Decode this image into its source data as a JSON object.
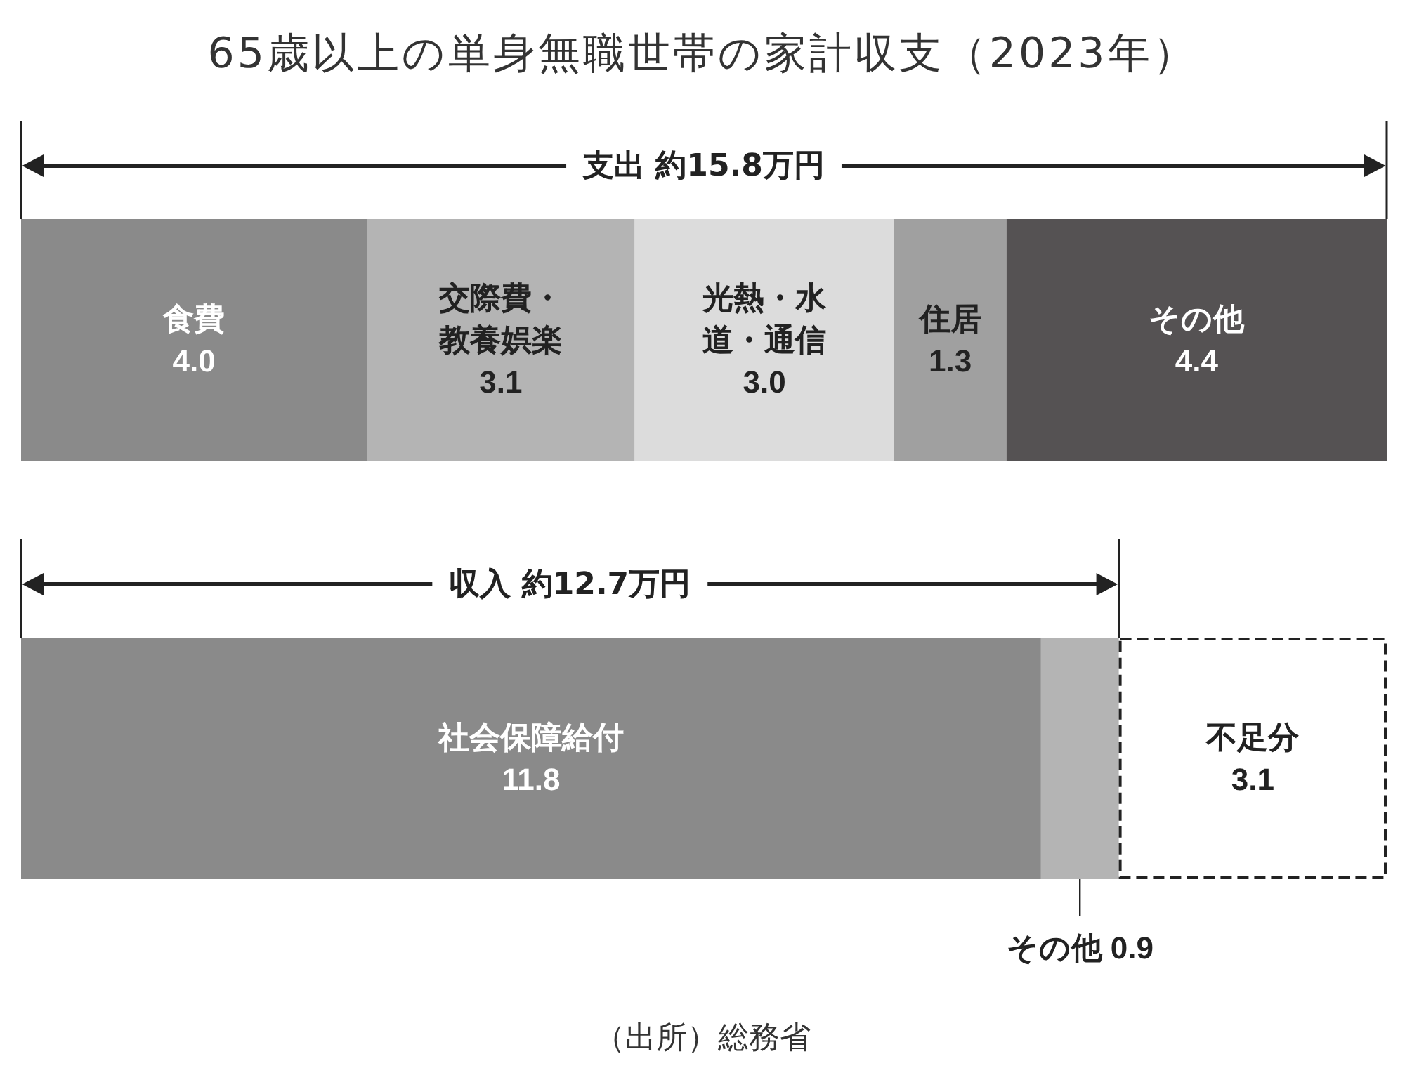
{
  "chart_data": {
    "type": "bar",
    "orientation": "horizontal",
    "stacked": true,
    "title": "65歳以上の単身無職世帯の家計収支（2023年）",
    "categories": [
      null,
      null
    ],
    "xlim": [
      0,
      15.8
    ],
    "tick_labels": false,
    "legend": false,
    "grid": false,
    "series": [
      {
        "name": "食費",
        "color": "#8a8a8a",
        "values": [
          4.0,
          null
        ],
        "value_labels": [
          "4.0",
          null
        ]
      },
      {
        "name": "交際費・教養娯楽",
        "color": "#b4b4b4",
        "values": [
          3.1,
          null
        ],
        "value_labels": [
          "3.1",
          null
        ]
      },
      {
        "name": "光熱・水道・通信",
        "color": "#dcdcdc",
        "values": [
          3.0,
          null
        ],
        "value_labels": [
          "3.0",
          null
        ]
      },
      {
        "name": "住居",
        "color": "#a0a0a0",
        "values": [
          1.3,
          null
        ],
        "value_labels": [
          "1.3",
          null
        ]
      },
      {
        "name": "その他",
        "color": "#555253",
        "values": [
          4.4,
          null
        ],
        "value_labels": [
          "4.4",
          null
        ]
      },
      {
        "name": "社会保障給付",
        "color": "#8a8a8a",
        "values": [
          null,
          11.8
        ],
        "value_labels": [
          null,
          "11.8"
        ]
      },
      {
        "name": "その他",
        "color": "#b4b4b4",
        "values": [
          null,
          0.9
        ],
        "value_labels": [
          null,
          "0.9"
        ]
      },
      {
        "name": "不足分",
        "color": "#ffffff",
        "line_style": "dashed",
        "values": [
          null,
          3.1
        ],
        "value_labels": [
          null,
          "3.1"
        ]
      }
    ],
    "annotations": [
      "支出 約15.8万円",
      "収入 約12.7万円",
      "（出所）総務省"
    ]
  }
}
